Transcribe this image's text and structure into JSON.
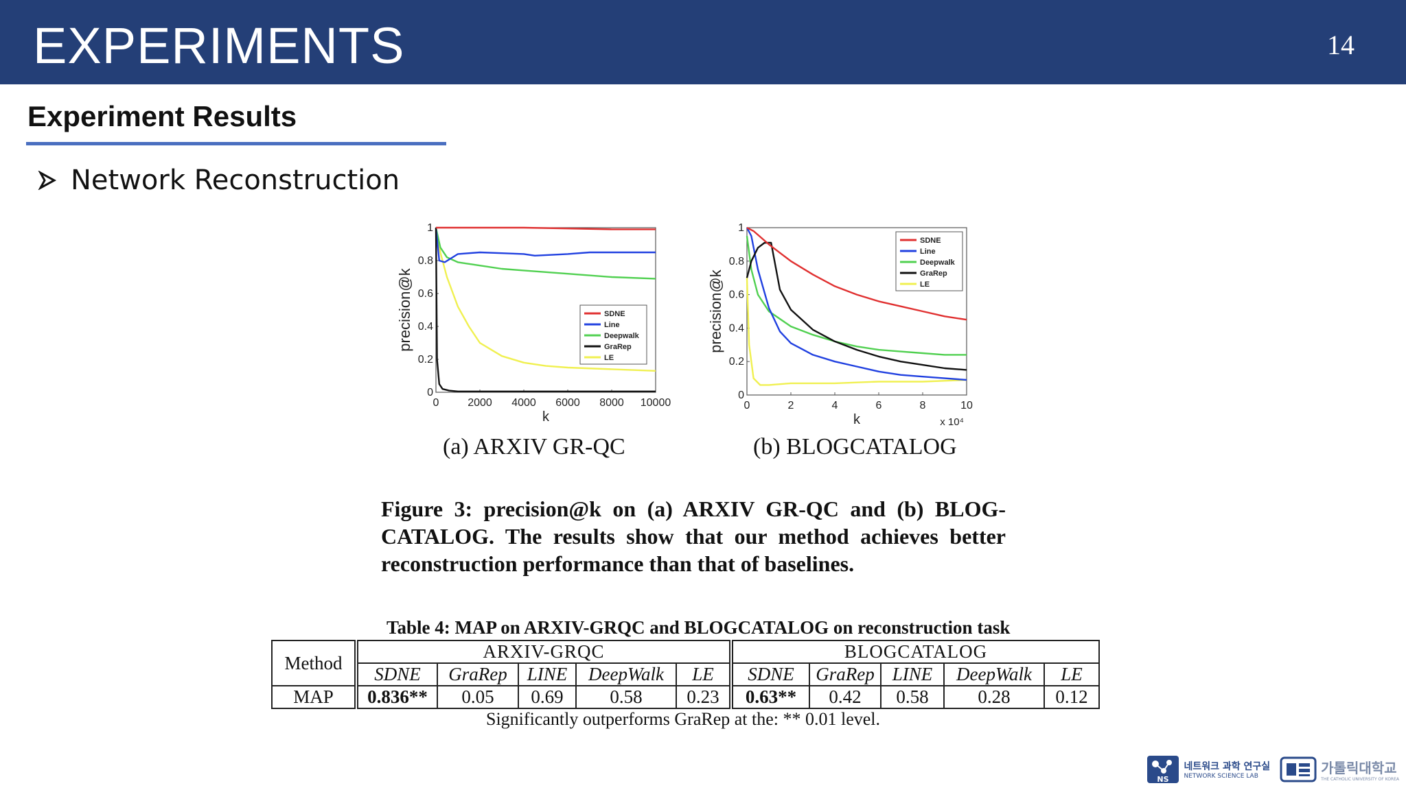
{
  "header": {
    "title": "EXPERIMENTS",
    "page_number": "14"
  },
  "section": {
    "title": "Experiment Results"
  },
  "bullet": {
    "text": "Network Reconstruction"
  },
  "chart_data": [
    {
      "type": "line",
      "subcaption": "(a) ARXIV GR-QC",
      "xlabel": "k",
      "ylabel": "precision@k",
      "x_ticks": [
        "0",
        "2000",
        "4000",
        "6000",
        "8000",
        "10000"
      ],
      "y_ticks": [
        "0",
        "0.2",
        "0.4",
        "0.6",
        "0.8",
        "1"
      ],
      "xlim": [
        0,
        10000
      ],
      "ylim": [
        0,
        1
      ],
      "legend_position": "center-right",
      "series": [
        {
          "name": "SDNE",
          "color": "#e03030",
          "x": [
            0,
            2000,
            4000,
            6000,
            8000,
            10000
          ],
          "y": [
            1.0,
            1.0,
            1.0,
            0.995,
            0.99,
            0.99
          ]
        },
        {
          "name": "Line",
          "color": "#2040e0",
          "x": [
            0,
            150,
            400,
            1000,
            2000,
            3000,
            4000,
            4500,
            6000,
            7000,
            8000,
            10000
          ],
          "y": [
            1.0,
            0.8,
            0.79,
            0.84,
            0.85,
            0.845,
            0.84,
            0.83,
            0.84,
            0.85,
            0.85,
            0.85
          ]
        },
        {
          "name": "Deepwalk",
          "color": "#50d050",
          "x": [
            0,
            200,
            500,
            1000,
            2000,
            3000,
            4000,
            6000,
            8000,
            10000
          ],
          "y": [
            1.0,
            0.88,
            0.82,
            0.79,
            0.77,
            0.75,
            0.74,
            0.72,
            0.7,
            0.69
          ]
        },
        {
          "name": "GraRep",
          "color": "#111111",
          "x": [
            0,
            50,
            150,
            300,
            600,
            1000,
            5000,
            10000
          ],
          "y": [
            1.0,
            0.2,
            0.05,
            0.02,
            0.01,
            0.005,
            0.005,
            0.005
          ]
        },
        {
          "name": "LE",
          "color": "#f0f050",
          "x": [
            0,
            200,
            500,
            1000,
            1500,
            2000,
            3000,
            4000,
            5000,
            6000,
            8000,
            10000
          ],
          "y": [
            1.0,
            0.85,
            0.7,
            0.52,
            0.4,
            0.3,
            0.22,
            0.18,
            0.16,
            0.15,
            0.14,
            0.13
          ]
        }
      ]
    },
    {
      "type": "line",
      "subcaption": "(b) BLOGCATALOG",
      "xlabel": "k",
      "ylabel": "precision@k",
      "x_ticks": [
        "0",
        "2",
        "4",
        "6",
        "8",
        "10"
      ],
      "y_ticks": [
        "0",
        "0.2",
        "0.4",
        "0.6",
        "0.8",
        "1"
      ],
      "x_multiplier": "x 10⁴",
      "xlim": [
        0,
        10
      ],
      "ylim": [
        0,
        1
      ],
      "legend_position": "top-right",
      "series": [
        {
          "name": "SDNE",
          "color": "#e03030",
          "x": [
            0,
            0.3,
            1,
            2,
            3,
            4,
            5,
            6,
            7,
            8,
            9,
            10
          ],
          "y": [
            1.0,
            0.98,
            0.9,
            0.8,
            0.72,
            0.65,
            0.6,
            0.56,
            0.53,
            0.5,
            0.47,
            0.45
          ]
        },
        {
          "name": "Line",
          "color": "#2040e0",
          "x": [
            0,
            0.2,
            0.5,
            1,
            1.5,
            2,
            3,
            4,
            5,
            6,
            7,
            8,
            9,
            10
          ],
          "y": [
            1.0,
            0.95,
            0.75,
            0.52,
            0.38,
            0.31,
            0.24,
            0.2,
            0.17,
            0.14,
            0.12,
            0.11,
            0.1,
            0.09
          ]
        },
        {
          "name": "Deepwalk",
          "color": "#50d050",
          "x": [
            0,
            0.2,
            0.5,
            1,
            2,
            3,
            4,
            5,
            6,
            7,
            8,
            9,
            10
          ],
          "y": [
            0.95,
            0.75,
            0.6,
            0.5,
            0.41,
            0.36,
            0.32,
            0.29,
            0.27,
            0.26,
            0.25,
            0.24,
            0.24
          ]
        },
        {
          "name": "GraRep",
          "color": "#111111",
          "x": [
            0,
            0.2,
            0.5,
            0.8,
            1.1,
            1.5,
            2,
            3,
            4,
            5,
            6,
            7,
            8,
            9,
            10
          ],
          "y": [
            0.7,
            0.8,
            0.88,
            0.91,
            0.91,
            0.63,
            0.51,
            0.39,
            0.32,
            0.27,
            0.23,
            0.2,
            0.18,
            0.16,
            0.15
          ]
        },
        {
          "name": "LE",
          "color": "#f0f050",
          "x": [
            0,
            0.1,
            0.3,
            0.6,
            1,
            2,
            4,
            6,
            8,
            10
          ],
          "y": [
            0.7,
            0.3,
            0.1,
            0.06,
            0.06,
            0.07,
            0.07,
            0.08,
            0.08,
            0.09
          ]
        }
      ]
    }
  ],
  "figure_caption": "Figure 3: precision@k on (a) ARXIV GR-QC and (b) BLOG-CATALOG. The results show that our method achieves better reconstruction performance than that of baselines.",
  "table": {
    "caption": "Table 4: MAP on ARXIV-GRQC and BLOGCATALOG on reconstruction task",
    "method_header": "Method",
    "group1": "ARXIV-GRQC",
    "group2": "BLOGCATALOG",
    "columns1": [
      "SDNE",
      "GraRep",
      "LINE",
      "DeepWalk",
      "LE"
    ],
    "columns2": [
      "SDNE",
      "GraRep",
      "LINE",
      "DeepWalk",
      "LE"
    ],
    "row_label": "MAP",
    "values1": [
      "0.836**",
      "0.05",
      "0.69",
      "0.58",
      "0.23"
    ],
    "values2": [
      "0.63**",
      "0.42",
      "0.58",
      "0.28",
      "0.12"
    ],
    "note": "Significantly outperforms GraRep at the: ** 0.01 level."
  },
  "logos": {
    "lab_name_ko": "네트워크 과학 연구실",
    "lab_name_en": "NETWORK SCIENCE LAB",
    "lab_badge": "NS",
    "university_ko": "가톨릭대학교",
    "university_en": "THE CATHOLIC UNIVERSITY OF KOREA"
  }
}
